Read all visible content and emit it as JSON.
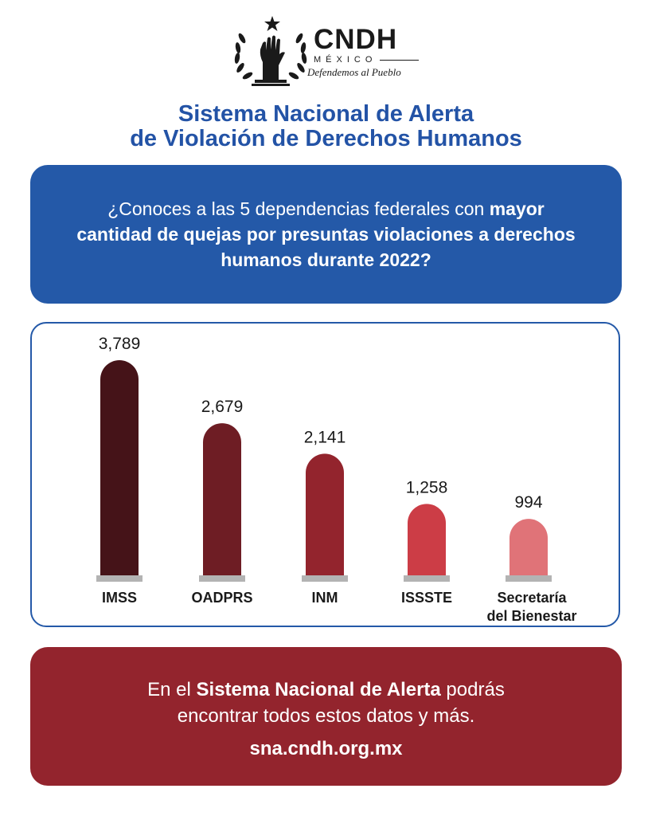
{
  "logo": {
    "title": "CNDH",
    "country": "MÉXICO",
    "motto": "Defendemos al Pueblo"
  },
  "header": {
    "title_line1": "Sistema Nacional de Alerta",
    "title_line2": "de Violación de Derechos Humanos"
  },
  "question": {
    "part1": "¿Conoces a las 5 dependencias federales con ",
    "bold": "mayor cantidad de quejas por presuntas violaciones a derechos humanos durante 2022?"
  },
  "chart_data": {
    "type": "bar",
    "categories": [
      "IMSS",
      "OADPRS",
      "INM",
      "ISSSTE",
      "Secretaría del Bienestar"
    ],
    "category_lines": [
      [
        "IMSS"
      ],
      [
        "OADPRS"
      ],
      [
        "INM"
      ],
      [
        "ISSSTE"
      ],
      [
        "Secretaría",
        "del Bienestar"
      ]
    ],
    "values": [
      3789,
      2679,
      2141,
      1258,
      994
    ],
    "value_labels": [
      "3,789",
      "2,679",
      "2,141",
      "1,258",
      "994"
    ],
    "colors": [
      "#451318",
      "#6e1d24",
      "#93242d",
      "#cc3d46",
      "#e07378"
    ],
    "baseline_color": "#b3b3b3",
    "ylim": [
      0,
      3789
    ],
    "grid": false,
    "legend": "none"
  },
  "footer": {
    "pre": "En el ",
    "bold": "Sistema Nacional de Alerta",
    "post1": " podrás",
    "line2": "encontrar todos estos datos y más.",
    "url": "sna.cndh.org.mx"
  }
}
